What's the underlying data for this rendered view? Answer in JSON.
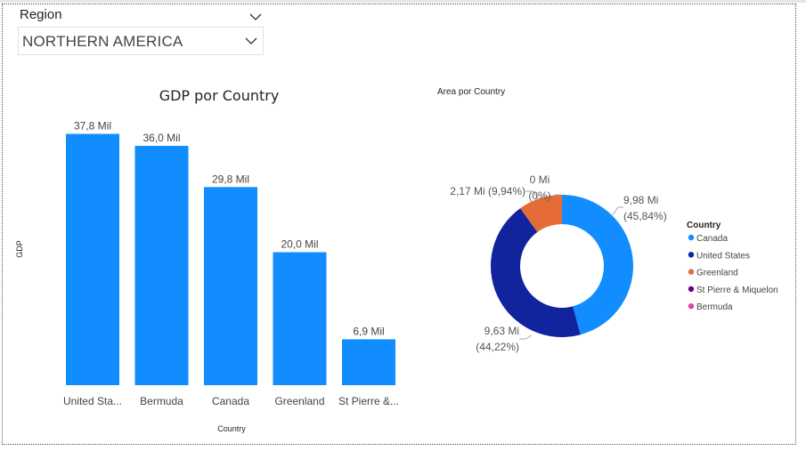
{
  "slicer": {
    "title": "Region",
    "selected": "NORTHERN AMERICA"
  },
  "chart_data": [
    {
      "type": "bar",
      "title": "GDP por Country",
      "xlabel": "Country",
      "ylabel": "GDP",
      "categories": [
        "United Sta...",
        "Bermuda",
        "Canada",
        "Greenland",
        "St Pierre &..."
      ],
      "values": [
        37.8,
        36.0,
        29.8,
        20.0,
        6.9
      ],
      "data_labels": [
        "37,8 Mil",
        "36,0 Mil",
        "29,8 Mil",
        "20,0 Mil",
        "6,9 Mil"
      ],
      "ylim": [
        0,
        38
      ],
      "grid": false,
      "color": "#118DFF"
    },
    {
      "type": "pie",
      "variant": "donut",
      "title": "Area por Country",
      "legend_title": "Country",
      "legend_position": "right",
      "slices": [
        {
          "name": "Canada",
          "value": 9.98,
          "label": "9,98 Mi",
          "pct": "(45,84%)",
          "color": "#118DFF"
        },
        {
          "name": "United States",
          "value": 9.63,
          "label": "9,63 Mi",
          "pct": "(44,22%)",
          "color": "#12239E"
        },
        {
          "name": "Greenland",
          "value": 2.17,
          "label": "2,17 Mi (9,94%)",
          "pct": "",
          "color": "#E66C37"
        },
        {
          "name": "St Pierre & Miquelon",
          "value": 0.0,
          "label": "0 Mi",
          "pct": "(0%)",
          "color": "#6B007B"
        },
        {
          "name": "Bermuda",
          "value": 0.0,
          "label": "",
          "pct": "",
          "color": "#E044A7"
        }
      ]
    }
  ]
}
